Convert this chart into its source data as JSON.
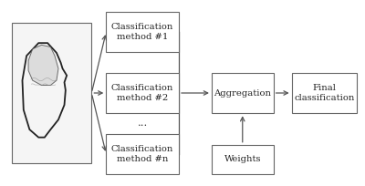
{
  "bg_color": "#ffffff",
  "border_color": "#666666",
  "arrow_color": "#555555",
  "text_color": "#222222",
  "fig_width": 4.0,
  "fig_height": 2.04,
  "dpi": 100,
  "boxes": {
    "brain": [
      0.03,
      0.12,
      0.22,
      0.76
    ],
    "cls1": [
      0.29,
      0.72,
      0.2,
      0.22
    ],
    "cls2": [
      0.29,
      0.39,
      0.2,
      0.22
    ],
    "clsn": [
      0.29,
      0.06,
      0.2,
      0.22
    ],
    "agg": [
      0.58,
      0.39,
      0.17,
      0.22
    ],
    "wts": [
      0.58,
      0.06,
      0.17,
      0.16
    ],
    "final": [
      0.8,
      0.39,
      0.18,
      0.22
    ]
  },
  "labels": {
    "cls1": "Classification\nmethod #1",
    "cls2": "Classification\nmethod #2",
    "clsn": "Classification\nmethod #n",
    "dots": "...",
    "agg": "Aggregation",
    "wts": "Weights",
    "final": "Final\nclassification"
  },
  "fontsize": 7.2,
  "line_color": "#666666",
  "lw": 0.9
}
